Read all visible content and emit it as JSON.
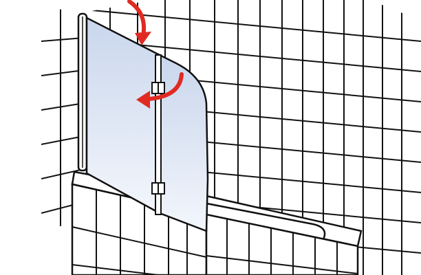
{
  "colors": {
    "background": "#ffffff",
    "line": "#111111",
    "glass_top": "#c9d6ec",
    "glass_bottom": "#f3f6fc",
    "arrow": "#e02a22"
  },
  "icons": {
    "upper_arrow": "curved-rotation-arrow-icon",
    "middle_arrow": "curved-rotation-arrow-icon",
    "hinge": "hinge-icon"
  }
}
